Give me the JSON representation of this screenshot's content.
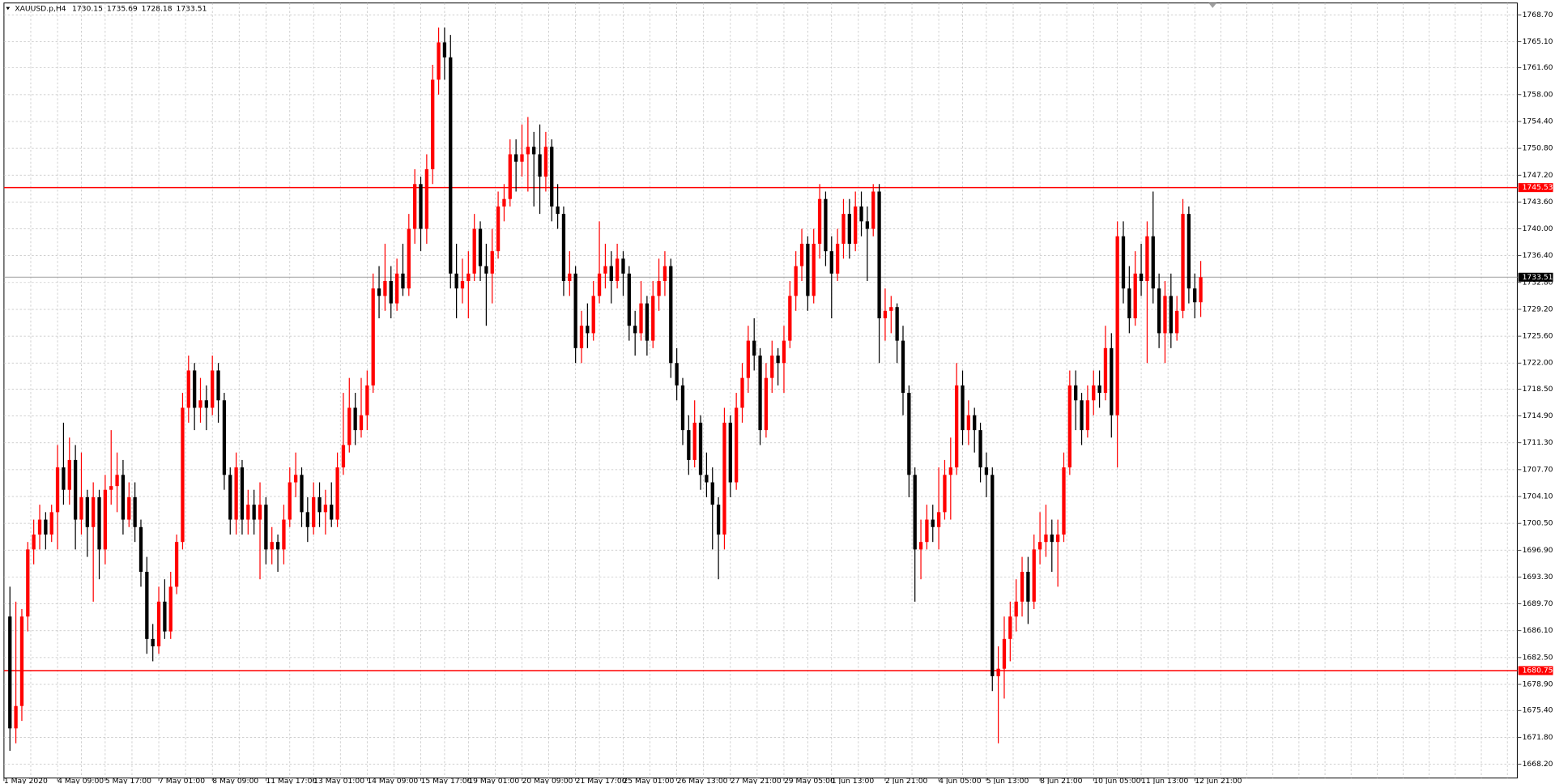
{
  "chart_data": {
    "type": "candlestick",
    "title": "XAUUSD.p,H4",
    "up_color": "#ff0000",
    "down_color": "#000000",
    "grid": true,
    "grid_color": "#c0c0c0",
    "ylim": [
      1666.34,
      1770.29
    ],
    "yticks": [
      {
        "value": 1668.2,
        "label": "1668.20"
      },
      {
        "value": 1671.8,
        "label": "1671.80"
      },
      {
        "value": 1675.4,
        "label": "1675.40"
      },
      {
        "value": 1678.9,
        "label": "1678.90"
      },
      {
        "value": 1682.5,
        "label": "1682.50"
      },
      {
        "value": 1686.1,
        "label": "1686.10"
      },
      {
        "value": 1689.7,
        "label": "1689.70"
      },
      {
        "value": 1693.3,
        "label": "1693.30"
      },
      {
        "value": 1696.9,
        "label": "1696.90"
      },
      {
        "value": 1700.5,
        "label": "1700.50"
      },
      {
        "value": 1704.1,
        "label": "1704.10"
      },
      {
        "value": 1707.7,
        "label": "1707.70"
      },
      {
        "value": 1711.3,
        "label": "1711.30"
      },
      {
        "value": 1714.9,
        "label": "1714.90"
      },
      {
        "value": 1718.5,
        "label": "1718.50"
      },
      {
        "value": 1722,
        "label": "1722.00"
      },
      {
        "value": 1725.6,
        "label": "1725.60"
      },
      {
        "value": 1729.2,
        "label": "1729.20"
      },
      {
        "value": 1732.8,
        "label": "1732.80"
      },
      {
        "value": 1736.4,
        "label": "1736.40"
      },
      {
        "value": 1740,
        "label": "1740.00"
      },
      {
        "value": 1743.6,
        "label": "1743.60"
      },
      {
        "value": 1747.2,
        "label": "1747.20"
      },
      {
        "value": 1750.8,
        "label": "1750.80"
      },
      {
        "value": 1754.4,
        "label": "1754.40"
      },
      {
        "value": 1758,
        "label": "1758.00"
      },
      {
        "value": 1761.6,
        "label": "1761.60"
      },
      {
        "value": 1765.1,
        "label": "1765.10"
      },
      {
        "value": 1768.7,
        "label": "1768.70"
      }
    ],
    "hlines": [
      {
        "value": 1745.53,
        "color": "#ff0000"
      },
      {
        "value": 1680.75,
        "color": "#ff0000"
      }
    ],
    "bid_line": {
      "value": 1733.51,
      "color": "#a0a0a0"
    },
    "categories": [
      "1 May 2020",
      null,
      null,
      null,
      null,
      null,
      null,
      null,
      null,
      "4 May 09:00",
      null,
      null,
      null,
      null,
      null,
      null,
      null,
      "5 May 17:00",
      null,
      null,
      null,
      null,
      null,
      null,
      null,
      null,
      "7 May 01:00",
      null,
      null,
      null,
      null,
      null,
      null,
      null,
      null,
      "8 May 09:00",
      null,
      null,
      null,
      null,
      null,
      null,
      null,
      null,
      "11 May 17:00",
      null,
      null,
      null,
      null,
      null,
      null,
      null,
      "13 May 01:00",
      null,
      null,
      null,
      null,
      null,
      null,
      null,
      null,
      "14 May 09:00",
      null,
      null,
      null,
      null,
      null,
      null,
      null,
      null,
      "15 May 17:00",
      null,
      null,
      null,
      null,
      null,
      null,
      null,
      "19 May 01:00",
      null,
      null,
      null,
      null,
      null,
      null,
      null,
      null,
      "20 May 09:00",
      null,
      null,
      null,
      null,
      null,
      null,
      null,
      null,
      "21 May 17:00",
      null,
      null,
      null,
      null,
      null,
      null,
      null,
      "25 May 01:00",
      null,
      null,
      null,
      null,
      null,
      null,
      null,
      null,
      "26 May 13:00",
      null,
      null,
      null,
      null,
      null,
      null,
      null,
      null,
      "27 May 21:00",
      null,
      null,
      null,
      null,
      null,
      null,
      null,
      null,
      "29 May 05:00",
      null,
      null,
      null,
      null,
      null,
      null,
      null,
      "1 Jun 13:00",
      null,
      null,
      null,
      null,
      null,
      null,
      null,
      null,
      "2 Jun 21:00",
      null,
      null,
      null,
      null,
      null,
      null,
      null,
      null,
      "4 Jun 05:00",
      null,
      null,
      null,
      null,
      null,
      null,
      null,
      "5 Jun 13:00",
      null,
      null,
      null,
      null,
      null,
      null,
      null,
      null,
      "8 Jun 21:00",
      null,
      null,
      null,
      null,
      null,
      null,
      null,
      null,
      "10 Jun 05:00",
      null,
      null,
      null,
      null,
      null,
      null,
      null,
      "11 Jun 13:00",
      null,
      null,
      null,
      null,
      null,
      null,
      null,
      null,
      "12 Jun 21:00"
    ],
    "ohlc": [
      [
        1688,
        1692,
        1670,
        1673
      ],
      [
        1673,
        1690,
        1671,
        1676
      ],
      [
        1676,
        1689,
        1674,
        1688
      ],
      [
        1688,
        1698,
        1686,
        1697
      ],
      [
        1697,
        1701,
        1695,
        1699
      ],
      [
        1699,
        1703,
        1697,
        1701
      ],
      [
        1701,
        1702,
        1697,
        1699
      ],
      [
        1699,
        1703,
        1698,
        1702
      ],
      [
        1702,
        1711,
        1697,
        1708
      ],
      [
        1708,
        1714,
        1703,
        1705
      ],
      [
        1705,
        1712,
        1703,
        1709
      ],
      [
        1709,
        1711,
        1697,
        1701
      ],
      [
        1701,
        1710,
        1699,
        1704
      ],
      [
        1704,
        1705,
        1696,
        1700
      ],
      [
        1700,
        1706,
        1690,
        1704
      ],
      [
        1704,
        1705,
        1693,
        1697
      ],
      [
        1697,
        1707,
        1695,
        1705
      ],
      [
        1705,
        1713,
        1703,
        1705.5
      ],
      [
        1705.5,
        1710,
        1702,
        1707
      ],
      [
        1707,
        1709,
        1699,
        1701
      ],
      [
        1701,
        1706,
        1700,
        1704
      ],
      [
        1704,
        1706,
        1698,
        1700
      ],
      [
        1700,
        1701,
        1692,
        1694
      ],
      [
        1694,
        1696,
        1683,
        1685
      ],
      [
        1685,
        1687,
        1682,
        1684
      ],
      [
        1684,
        1692,
        1683,
        1690
      ],
      [
        1690,
        1693,
        1685,
        1686
      ],
      [
        1686,
        1694,
        1685,
        1692
      ],
      [
        1692,
        1699,
        1691,
        1698
      ],
      [
        1698,
        1718,
        1697,
        1716
      ],
      [
        1716,
        1723,
        1714,
        1721
      ],
      [
        1721,
        1722,
        1713,
        1716
      ],
      [
        1716,
        1720,
        1714,
        1717
      ],
      [
        1717,
        1719,
        1713,
        1716
      ],
      [
        1716,
        1723,
        1715,
        1721
      ],
      [
        1721,
        1722,
        1714,
        1717
      ],
      [
        1717,
        1718,
        1705,
        1707
      ],
      [
        1707,
        1708,
        1699,
        1701
      ],
      [
        1701,
        1710,
        1699,
        1708
      ],
      [
        1708,
        1709,
        1699,
        1701
      ],
      [
        1701,
        1705,
        1699,
        1703
      ],
      [
        1703,
        1705,
        1699,
        1701
      ],
      [
        1701,
        1706,
        1693,
        1703
      ],
      [
        1703,
        1704,
        1695,
        1697
      ],
      [
        1697,
        1700,
        1695,
        1698
      ],
      [
        1698,
        1699,
        1694,
        1697
      ],
      [
        1697,
        1703,
        1695,
        1701
      ],
      [
        1701,
        1708,
        1700,
        1706
      ],
      [
        1706,
        1710,
        1704,
        1707
      ],
      [
        1707,
        1708,
        1700,
        1702
      ],
      [
        1702,
        1704,
        1698,
        1700
      ],
      [
        1700,
        1706,
        1699,
        1704
      ],
      [
        1704,
        1706,
        1700,
        1702
      ],
      [
        1702,
        1705,
        1699,
        1703
      ],
      [
        1703,
        1706,
        1700,
        1701
      ],
      [
        1701,
        1710,
        1700,
        1708
      ],
      [
        1708,
        1718,
        1707,
        1711
      ],
      [
        1711,
        1720,
        1710,
        1716
      ],
      [
        1716,
        1718,
        1711,
        1713
      ],
      [
        1713,
        1720,
        1712,
        1715
      ],
      [
        1715,
        1721,
        1713,
        1719
      ],
      [
        1719,
        1734,
        1718,
        1732
      ],
      [
        1732,
        1735,
        1728,
        1731
      ],
      [
        1731,
        1738,
        1729,
        1733
      ],
      [
        1733,
        1735,
        1728,
        1730
      ],
      [
        1730,
        1736,
        1729,
        1734
      ],
      [
        1734,
        1738,
        1731,
        1732
      ],
      [
        1732,
        1742,
        1731,
        1740
      ],
      [
        1740,
        1748,
        1738,
        1746
      ],
      [
        1746,
        1747,
        1737,
        1740
      ],
      [
        1740,
        1750,
        1738,
        1748
      ],
      [
        1748,
        1762,
        1746,
        1760
      ],
      [
        1760,
        1767,
        1758,
        1765
      ],
      [
        1765,
        1767,
        1760,
        1763
      ],
      [
        1763,
        1766,
        1732,
        1734
      ],
      [
        1734,
        1738,
        1728,
        1732
      ],
      [
        1732,
        1736,
        1730,
        1733
      ],
      [
        1733,
        1737,
        1728,
        1734
      ],
      [
        1734,
        1742,
        1733,
        1740
      ],
      [
        1740,
        1741,
        1733,
        1735
      ],
      [
        1735,
        1738,
        1727,
        1734
      ],
      [
        1734,
        1740,
        1730,
        1737
      ],
      [
        1737,
        1745,
        1736,
        1743
      ],
      [
        1743,
        1746,
        1741,
        1744
      ],
      [
        1744,
        1752,
        1743,
        1750
      ],
      [
        1750,
        1752,
        1745,
        1749
      ],
      [
        1749,
        1754,
        1747,
        1750
      ],
      [
        1750,
        1755,
        1745,
        1751
      ],
      [
        1751,
        1753,
        1743,
        1750
      ],
      [
        1750,
        1754,
        1742,
        1747
      ],
      [
        1747,
        1753,
        1745,
        1751
      ],
      [
        1751,
        1752,
        1741,
        1743
      ],
      [
        1743,
        1746,
        1740,
        1742
      ],
      [
        1742,
        1743,
        1731,
        1733
      ],
      [
        1733,
        1737,
        1731,
        1734
      ],
      [
        1734,
        1735,
        1722,
        1724
      ],
      [
        1724,
        1729,
        1722,
        1727
      ],
      [
        1727,
        1730,
        1724,
        1726
      ],
      [
        1726,
        1733,
        1725,
        1731
      ],
      [
        1731,
        1741,
        1730,
        1734
      ],
      [
        1734,
        1738,
        1732,
        1735
      ],
      [
        1735,
        1737,
        1730,
        1733
      ],
      [
        1733,
        1738,
        1732,
        1736
      ],
      [
        1736,
        1737,
        1731,
        1734
      ],
      [
        1734,
        1735,
        1725,
        1727
      ],
      [
        1727,
        1729,
        1723,
        1726
      ],
      [
        1726,
        1733,
        1725,
        1730
      ],
      [
        1730,
        1731,
        1723,
        1725
      ],
      [
        1725,
        1733,
        1724,
        1731
      ],
      [
        1731,
        1736,
        1729,
        1733
      ],
      [
        1733,
        1737,
        1731,
        1735
      ],
      [
        1735,
        1736,
        1720,
        1722
      ],
      [
        1722,
        1724,
        1717,
        1719
      ],
      [
        1719,
        1720,
        1711,
        1713
      ],
      [
        1713,
        1715,
        1707,
        1709
      ],
      [
        1709,
        1717,
        1708,
        1714
      ],
      [
        1714,
        1715,
        1705,
        1707
      ],
      [
        1707,
        1710,
        1704,
        1706
      ],
      [
        1706,
        1708,
        1697,
        1703
      ],
      [
        1703,
        1704,
        1693,
        1699
      ],
      [
        1699,
        1716,
        1697,
        1714
      ],
      [
        1714,
        1715,
        1704,
        1706
      ],
      [
        1706,
        1718,
        1705,
        1716
      ],
      [
        1716,
        1722,
        1714,
        1720
      ],
      [
        1720,
        1727,
        1718,
        1725
      ],
      [
        1725,
        1728,
        1721,
        1723
      ],
      [
        1723,
        1724,
        1711,
        1713
      ],
      [
        1713,
        1722,
        1712,
        1720
      ],
      [
        1720,
        1725,
        1718,
        1723
      ],
      [
        1723,
        1724,
        1719,
        1722
      ],
      [
        1722,
        1727,
        1718,
        1725
      ],
      [
        1725,
        1733,
        1724,
        1731
      ],
      [
        1731,
        1737,
        1729,
        1735
      ],
      [
        1735,
        1740,
        1733,
        1738
      ],
      [
        1738,
        1739,
        1729,
        1731
      ],
      [
        1731,
        1740,
        1730,
        1738
      ],
      [
        1738,
        1746,
        1736,
        1744
      ],
      [
        1744,
        1745,
        1735,
        1737
      ],
      [
        1737,
        1739,
        1728,
        1734
      ],
      [
        1734,
        1740,
        1733,
        1738
      ],
      [
        1738,
        1744,
        1736,
        1742
      ],
      [
        1742,
        1744,
        1736,
        1738
      ],
      [
        1738,
        1745,
        1737,
        1743
      ],
      [
        1743,
        1745,
        1739,
        1741
      ],
      [
        1741,
        1743,
        1733,
        1740
      ],
      [
        1740,
        1746,
        1739,
        1745
      ],
      [
        1745,
        1746,
        1722,
        1728
      ],
      [
        1728,
        1732,
        1725,
        1729
      ],
      [
        1729,
        1731,
        1726,
        1729.5
      ],
      [
        1729.5,
        1730,
        1722,
        1725
      ],
      [
        1725,
        1727,
        1715,
        1718
      ],
      [
        1718,
        1719,
        1704,
        1707
      ],
      [
        1707,
        1708,
        1690,
        1697
      ],
      [
        1697,
        1701,
        1693,
        1698
      ],
      [
        1698,
        1703,
        1697,
        1701
      ],
      [
        1701,
        1703,
        1698,
        1700
      ],
      [
        1700,
        1708,
        1697,
        1702
      ],
      [
        1702,
        1709,
        1701,
        1707
      ],
      [
        1707,
        1712,
        1701,
        1708
      ],
      [
        1708,
        1722,
        1707,
        1719
      ],
      [
        1719,
        1721,
        1711,
        1713
      ],
      [
        1713,
        1717,
        1711,
        1715
      ],
      [
        1715,
        1716,
        1710,
        1713
      ],
      [
        1713,
        1714,
        1706,
        1708
      ],
      [
        1708,
        1710,
        1704,
        1707
      ],
      [
        1707,
        1708,
        1678,
        1680
      ],
      [
        1680,
        1684,
        1671,
        1681
      ],
      [
        1681,
        1688,
        1677,
        1685
      ],
      [
        1685,
        1690,
        1682,
        1688
      ],
      [
        1688,
        1693,
        1686,
        1690
      ],
      [
        1690,
        1696,
        1688,
        1694
      ],
      [
        1694,
        1696,
        1687,
        1690
      ],
      [
        1690,
        1699,
        1689,
        1697
      ],
      [
        1697,
        1702,
        1695,
        1698
      ],
      [
        1698,
        1703,
        1696,
        1699
      ],
      [
        1699,
        1701,
        1694,
        1698
      ],
      [
        1698,
        1701,
        1692,
        1699
      ],
      [
        1699,
        1710,
        1698,
        1708
      ],
      [
        1708,
        1721,
        1707,
        1719
      ],
      [
        1719,
        1721,
        1713,
        1717
      ],
      [
        1717,
        1718,
        1711,
        1713
      ],
      [
        1713,
        1719,
        1712,
        1717
      ],
      [
        1717,
        1721,
        1715,
        1719
      ],
      [
        1719,
        1721,
        1716,
        1718
      ],
      [
        1718,
        1727,
        1717,
        1724
      ],
      [
        1724,
        1726,
        1712,
        1715
      ],
      [
        1715,
        1741,
        1708,
        1739
      ],
      [
        1739,
        1741,
        1730,
        1732
      ],
      [
        1732,
        1735,
        1726,
        1728
      ],
      [
        1728,
        1737,
        1727,
        1734
      ],
      [
        1734,
        1738,
        1731,
        1733
      ],
      [
        1733,
        1741,
        1722,
        1739
      ],
      [
        1739,
        1745,
        1730,
        1732
      ],
      [
        1732,
        1734,
        1724,
        1726
      ],
      [
        1726,
        1733,
        1722,
        1731
      ],
      [
        1731,
        1734,
        1724,
        1726
      ],
      [
        1726,
        1731,
        1725,
        1729
      ],
      [
        1729,
        1744,
        1728,
        1742
      ],
      [
        1742,
        1743,
        1730,
        1732
      ],
      [
        1732,
        1734,
        1728,
        1730.15
      ],
      [
        1730.15,
        1735.69,
        1728.18,
        1733.51
      ]
    ]
  }
}
